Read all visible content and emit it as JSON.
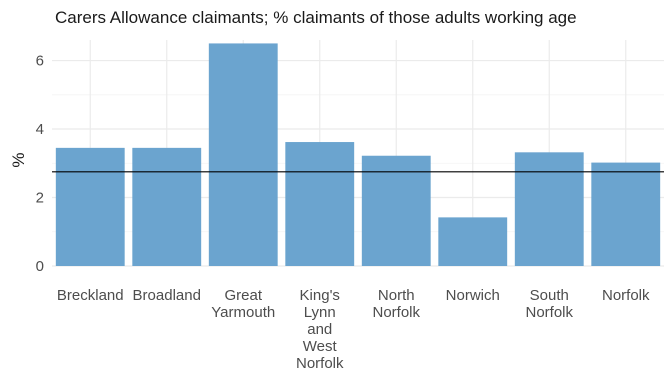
{
  "chart_data": {
    "type": "bar",
    "title": "Carers Allowance claimants; % claimants of those adults working age",
    "xlabel": "",
    "ylabel": "%",
    "categories": [
      [
        "Breckland"
      ],
      [
        "Broadland"
      ],
      [
        "Great",
        "Yarmouth"
      ],
      [
        "King's",
        "Lynn",
        "and",
        "West",
        "Norfolk"
      ],
      [
        "North",
        "Norfolk"
      ],
      [
        "Norwich"
      ],
      [
        "South",
        "Norfolk"
      ],
      [
        "Norfolk"
      ]
    ],
    "values": [
      3.45,
      3.45,
      6.5,
      3.62,
      3.22,
      1.42,
      3.32,
      3.02
    ],
    "reference_line": 2.75,
    "ylim": [
      0,
      6.6
    ],
    "yticks": [
      0,
      2,
      4,
      6
    ],
    "bar_color": "#6ba4cf",
    "line_color": "#000000",
    "grid": true
  }
}
